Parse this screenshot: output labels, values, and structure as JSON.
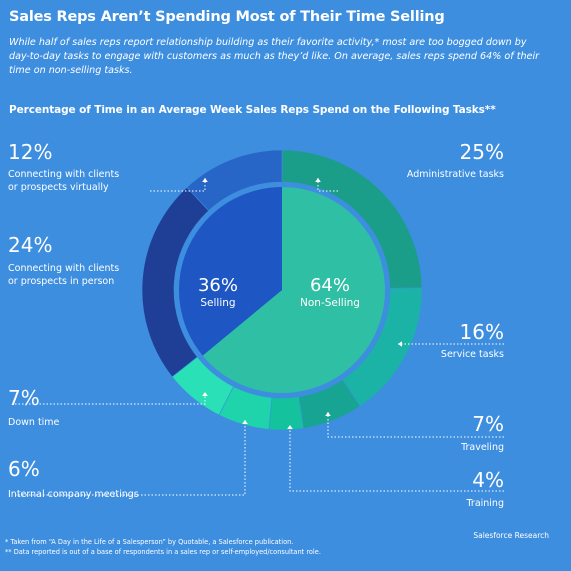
{
  "header": {
    "title": "Sales Reps Aren’t Spending Most of Their Time Selling",
    "subtitle": "While half of sales reps report relationship building as their favorite activity,* most are too bogged down by day-to-day tasks to engage with customers as much as they’d like. On average, sales reps spend 64% of their time on non-selling tasks."
  },
  "chart_data": {
    "type": "pie",
    "title": "Percentage of Time in an Average Week Sales Reps Spend on the Following Tasks**",
    "inner": [
      {
        "label": "Selling",
        "value": 36,
        "display": "36%",
        "color": "#1e56c4"
      },
      {
        "label": "Non-Selling",
        "value": 64,
        "display": "64%",
        "color": "#2fbfa4"
      }
    ],
    "outer": [
      {
        "label": "Administrative tasks",
        "value": 25,
        "display": "25%",
        "color": "#1a9e8a"
      },
      {
        "label": "Service tasks",
        "value": 16,
        "display": "16%",
        "color": "#1bb3a6"
      },
      {
        "label": "Traveling",
        "value": 7,
        "display": "7%",
        "color": "#17a493"
      },
      {
        "label": "Training",
        "value": 4,
        "display": "4%",
        "color": "#14c39e"
      },
      {
        "label": "Internal company meetings",
        "value": 6,
        "display": "6%",
        "color": "#1fd3ab"
      },
      {
        "label": "Down time",
        "value": 7,
        "display": "7%",
        "color": "#2ae0b6"
      },
      {
        "label": "Connecting with clients or prospects in person",
        "value": 24,
        "display": "24%",
        "color": "#1f3f96"
      },
      {
        "label": "Connecting with clients or prospects virtually",
        "value": 12,
        "display": "12%",
        "color": "#2766c6"
      }
    ]
  },
  "footer": {
    "footnote1": "* Taken from “A Day in the Life of a Salesperson” by Quotable, a Salesforce publication.",
    "footnote2": "** Data reported is out of a base of respondents in a sales rep or self-employed/consultant role.",
    "credit": "Salesforce Research"
  }
}
